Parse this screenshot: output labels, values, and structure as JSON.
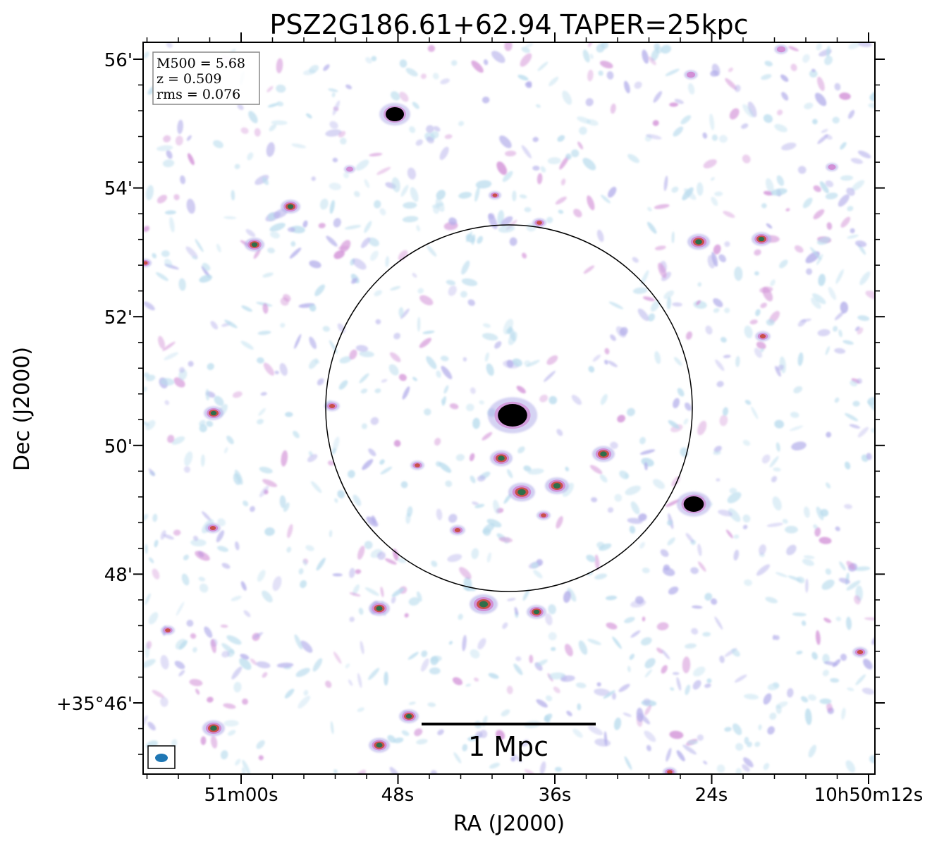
{
  "title": "PSZ2G186.61+62.94 TAPER=25kpc",
  "info": {
    "m500": "M500 = 5.68",
    "z": "z = 0.509",
    "rms": "rms = 0.076"
  },
  "axes": {
    "xlabel": "RA (J2000)",
    "ylabel": "Dec (J2000)",
    "xticks": [
      "51m00s",
      "48s",
      "36s",
      "24s",
      "10h50m12s"
    ],
    "yticks": [
      "56'",
      "54'",
      "52'",
      "50'",
      "48'",
      "+35°46'"
    ]
  },
  "scalebar": {
    "label": "1 Mpc"
  },
  "colors": {
    "low": "#b9dced",
    "mid": "#b3aeea",
    "pink": "#d18fd6",
    "red": "#c8504a",
    "green": "#2e6e4a",
    "black": "#000000",
    "beam": "#1f77b4"
  },
  "icons": {
    "beam": "beam-ellipse-icon"
  }
}
